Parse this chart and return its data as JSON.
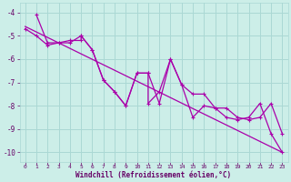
{
  "background_color": "#cceee8",
  "grid_color": "#aad8d4",
  "line_color": "#aa00aa",
  "xlim": [
    -0.5,
    23.5
  ],
  "ylim": [
    -10.4,
    -3.6
  ],
  "xticks": [
    0,
    1,
    2,
    3,
    4,
    5,
    6,
    7,
    8,
    9,
    10,
    11,
    12,
    13,
    14,
    15,
    16,
    17,
    18,
    19,
    20,
    21,
    22,
    23
  ],
  "yticks": [
    -10,
    -9,
    -8,
    -7,
    -6,
    -5,
    -4
  ],
  "xlabel": "Windchill (Refroidissement éolien,°C)",
  "line1_x": [
    0,
    1,
    2,
    3,
    4,
    5,
    6,
    7,
    8,
    9,
    10,
    11,
    12,
    13,
    14,
    15,
    16,
    17,
    18,
    19,
    20,
    21,
    22,
    23
  ],
  "line1_y": [
    -4.7,
    -5.0,
    -5.4,
    -5.3,
    -5.3,
    -5.0,
    -5.6,
    -6.9,
    -7.4,
    -8.0,
    -6.6,
    -6.6,
    -7.9,
    -6.0,
    -7.1,
    -8.5,
    -8.0,
    -8.1,
    -8.5,
    -8.6,
    -8.5,
    -7.9,
    -9.2,
    -10.0
  ],
  "line2_x": [
    1,
    2,
    3,
    4,
    5,
    5,
    6,
    7,
    8,
    9,
    10,
    11,
    11,
    12,
    13,
    14,
    15,
    16,
    17,
    18,
    19,
    20,
    21,
    22,
    23
  ],
  "line2_y": [
    -4.1,
    -5.3,
    -5.3,
    -5.2,
    -5.2,
    -5.0,
    -5.6,
    -6.9,
    -7.4,
    -8.0,
    -6.6,
    -6.6,
    -7.9,
    -7.4,
    -6.0,
    -7.1,
    -7.5,
    -7.5,
    -8.1,
    -8.1,
    -8.5,
    -8.6,
    -8.5,
    -7.9,
    -9.2
  ],
  "trend_x": [
    0,
    23
  ],
  "trend_y": [
    -4.6,
    -10.0
  ]
}
